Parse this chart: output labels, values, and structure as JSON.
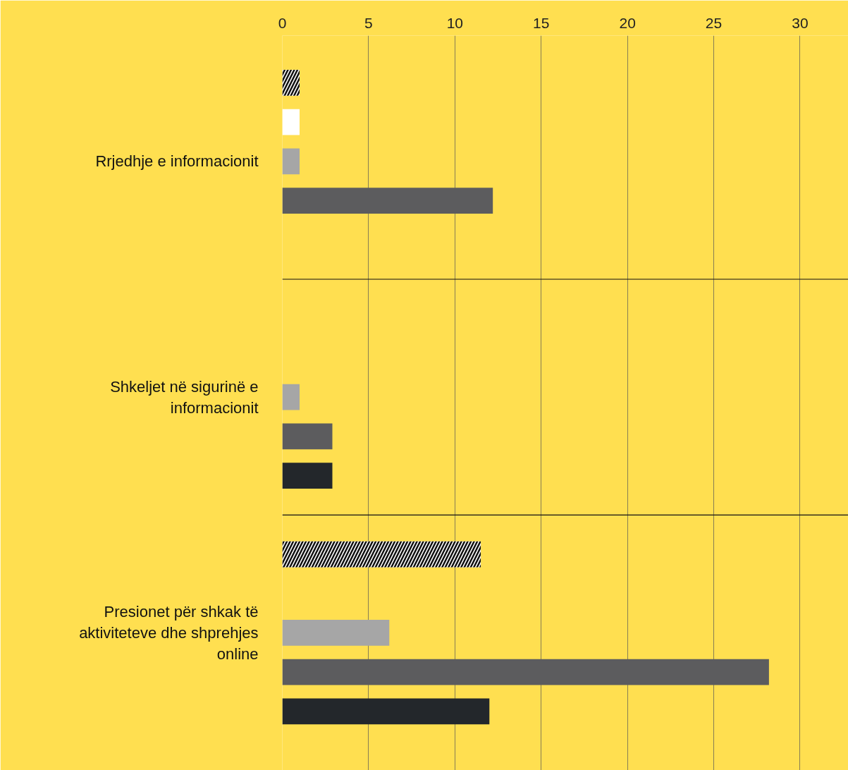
{
  "chart_data": {
    "type": "bar",
    "orientation": "horizontal",
    "categories": [
      "Rrjedhje e informacionit",
      "Shkeljet në sigurinë e informacionit",
      "Presionet për shkak të aktiviteteve dhe shprehjes online"
    ],
    "series": [
      {
        "color": "#111111",
        "values": [
          1,
          null,
          11.5
        ]
      },
      {
        "color": "#ffffff",
        "values": [
          1,
          null,
          null
        ]
      },
      {
        "color": "#a6a6a6",
        "values": [
          1,
          1,
          6.2
        ]
      },
      {
        "color": "#5c5c5e",
        "values": [
          12.2,
          2.9,
          28.2
        ]
      },
      {
        "color": "#23272b",
        "values": [
          null,
          2.9,
          12
        ]
      }
    ],
    "xlim": [
      0,
      32.8
    ],
    "xticks": [
      0,
      5,
      10,
      15,
      20,
      25,
      30
    ],
    "grid": "x"
  }
}
